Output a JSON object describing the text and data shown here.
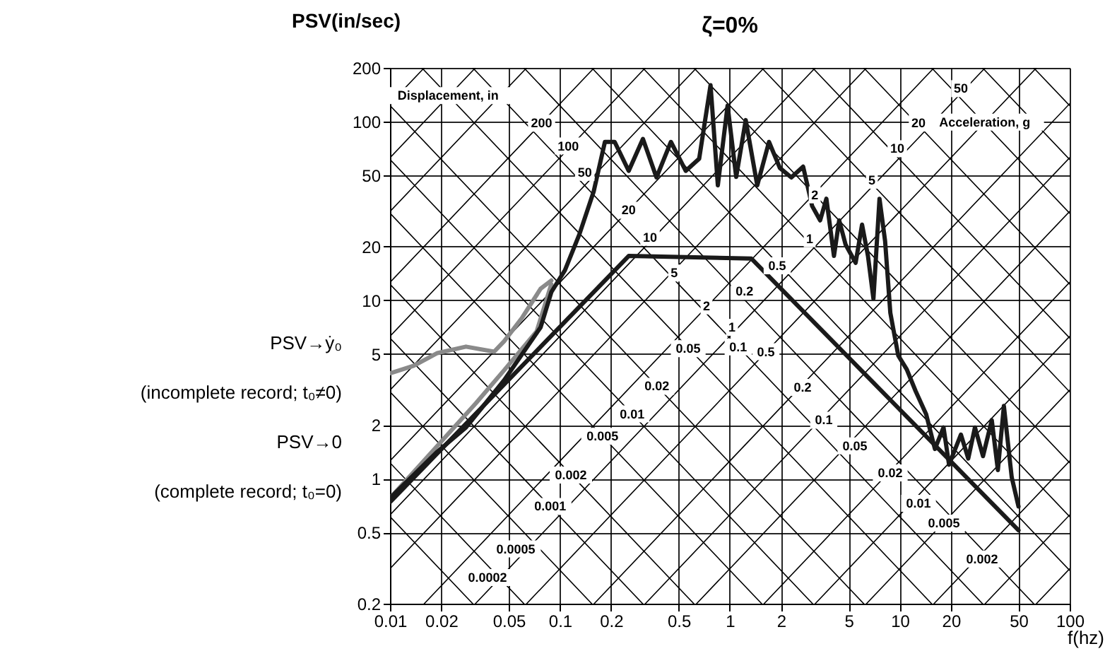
{
  "chart_data": {
    "type": "line",
    "title": "ζ=0%",
    "xlabel": "f(hz)",
    "ylabel": "PSV(in/sec)",
    "xlim": [
      0.01,
      100
    ],
    "ylim": [
      0.2,
      200
    ],
    "xticks": [
      0.01,
      0.02,
      0.05,
      0.1,
      0.2,
      0.5,
      1,
      2,
      5,
      10,
      20,
      50,
      100
    ],
    "yticks": [
      0.2,
      0.5,
      1,
      2,
      5,
      10,
      20,
      50,
      100,
      200
    ],
    "log": "xy",
    "grid": true,
    "legend": false,
    "marker": "none",
    "line_style": "solid",
    "series": [
      {
        "color": "#8a8a8a",
        "x": [
          0.01,
          0.0138,
          0.019,
          0.028,
          0.041,
          0.047,
          0.06,
          0.077,
          0.089
        ],
        "values": [
          3.9,
          4.3,
          5.06,
          5.5,
          5.15,
          5.9,
          8,
          11.6,
          12.9
        ]
      },
      {
        "color": "#8a8a8a",
        "x": [
          0.01,
          0.019,
          0.032,
          0.047,
          0.073,
          0.089
        ],
        "values": [
          0.78,
          1.53,
          2.65,
          4.06,
          6.7,
          12.3
        ]
      },
      {
        "color": "#1a1a1a",
        "x": [
          0.01,
          0.019,
          0.028,
          0.047,
          0.077,
          0.089,
          0.107,
          0.13,
          0.158,
          0.184,
          0.21,
          0.254,
          0.308,
          0.37,
          0.45,
          0.55,
          0.66,
          0.77,
          0.85,
          0.97,
          1.09,
          1.24,
          1.45,
          1.7,
          1.97,
          2.3,
          2.7,
          3.05,
          3.4,
          3.7,
          4.1,
          4.4,
          4.8,
          5.5,
          6.0,
          6.5,
          7.0,
          7.6,
          8.2,
          8.8,
          9.8,
          11,
          12.4,
          14.3,
          16.1,
          18.1,
          19.5,
          22.9,
          25.3,
          27.7,
          30.9,
          34.8,
          37.8,
          41,
          45.6,
          50
        ],
        "values": [
          0.78,
          1.42,
          1.94,
          3.57,
          7.06,
          11.1,
          14.7,
          23.3,
          40.6,
          77,
          77,
          53,
          80,
          48.7,
          77,
          53,
          62,
          160,
          44,
          123,
          49,
          102,
          44,
          77,
          55,
          48.7,
          56,
          33.7,
          28,
          37,
          17.7,
          28,
          20.5,
          16.2,
          26.5,
          17.7,
          10.2,
          37,
          21.4,
          8.5,
          4.9,
          4.1,
          3.1,
          2.3,
          1.47,
          1.94,
          1.2,
          1.77,
          1.3,
          1.94,
          1.34,
          2.13,
          1.12,
          2.56,
          1.02,
          0.7
        ]
      },
      {
        "color": "#1a1a1a",
        "x": [
          0.01,
          0.254,
          1.34,
          50
        ],
        "values": [
          0.74,
          17.7,
          17.1,
          0.515
        ]
      },
      {
        "color": "#000000",
        "x": [
          63.7,
          100
        ],
        "values": [
          0.2,
          0.314
        ]
      },
      {
        "color": "#000000",
        "x": [
          31.8,
          100
        ],
        "values": [
          0.2,
          0.628
        ]
      },
      {
        "color": "#000000",
        "x": [
          15.9,
          100
        ],
        "values": [
          0.2,
          1.26
        ]
      },
      {
        "color": "#000000",
        "x": [
          6.37,
          100
        ],
        "values": [
          0.2,
          3.14
        ]
      },
      {
        "color": "#000000",
        "x": [
          3.18,
          100
        ],
        "values": [
          0.2,
          6.28
        ]
      },
      {
        "color": "#000000",
        "x": [
          1.59,
          100
        ],
        "values": [
          0.2,
          12.6
        ]
      },
      {
        "color": "#000000",
        "x": [
          0.637,
          100
        ],
        "values": [
          0.2,
          31.4
        ]
      },
      {
        "color": "#000000",
        "x": [
          0.318,
          100
        ],
        "values": [
          0.2,
          62.8
        ]
      },
      {
        "color": "#000000",
        "x": [
          0.159,
          100
        ],
        "values": [
          0.2,
          126
        ]
      },
      {
        "color": "#000000",
        "x": [
          0.0637,
          63.7
        ],
        "values": [
          0.2,
          200
        ]
      },
      {
        "color": "#000000",
        "x": [
          0.0318,
          31.8
        ],
        "values": [
          0.2,
          200
        ]
      },
      {
        "color": "#000000",
        "x": [
          0.0159,
          15.9
        ],
        "values": [
          0.2,
          200
        ]
      },
      {
        "color": "#000000",
        "x": [
          0.01,
          6.37
        ],
        "values": [
          0.314,
          200
        ]
      },
      {
        "color": "#000000",
        "x": [
          0.01,
          3.18
        ],
        "values": [
          0.628,
          200
        ]
      },
      {
        "color": "#000000",
        "x": [
          0.01,
          1.59
        ],
        "values": [
          1.26,
          200
        ]
      },
      {
        "color": "#000000",
        "x": [
          0.01,
          0.637
        ],
        "values": [
          3.14,
          200
        ]
      },
      {
        "color": "#000000",
        "x": [
          0.01,
          0.318
        ],
        "values": [
          6.28,
          200
        ]
      },
      {
        "color": "#000000",
        "x": [
          0.01,
          0.159
        ],
        "values": [
          12.6,
          200
        ]
      },
      {
        "color": "#000000",
        "x": [
          0.01,
          0.0637
        ],
        "values": [
          31.4,
          200
        ]
      },
      {
        "color": "#000000",
        "x": [
          0.01,
          0.0318
        ],
        "values": [
          62.8,
          200
        ]
      },
      {
        "color": "#000000",
        "x": [
          0.01,
          0.0159
        ],
        "values": [
          126,
          200
        ]
      },
      {
        "color": "#000000",
        "x": [
          0.01,
          0.0307
        ],
        "values": [
          0.614,
          0.2
        ]
      },
      {
        "color": "#000000",
        "x": [
          0.01,
          0.0614
        ],
        "values": [
          1.23,
          0.2
        ]
      },
      {
        "color": "#000000",
        "x": [
          0.01,
          0.154
        ],
        "values": [
          3.07,
          0.2
        ]
      },
      {
        "color": "#000000",
        "x": [
          0.01,
          0.307
        ],
        "values": [
          6.14,
          0.2
        ]
      },
      {
        "color": "#000000",
        "x": [
          0.01,
          0.614
        ],
        "values": [
          12.3,
          0.2
        ]
      },
      {
        "color": "#000000",
        "x": [
          0.01,
          1.54
        ],
        "values": [
          30.7,
          0.2
        ]
      },
      {
        "color": "#000000",
        "x": [
          0.01,
          3.07
        ],
        "values": [
          61.4,
          0.2
        ]
      },
      {
        "color": "#000000",
        "x": [
          0.01,
          6.14
        ],
        "values": [
          123,
          0.2
        ]
      },
      {
        "color": "#000000",
        "x": [
          0.0154,
          15.4
        ],
        "values": [
          200,
          0.2
        ]
      },
      {
        "color": "#000000",
        "x": [
          0.0307,
          30.7
        ],
        "values": [
          200,
          0.2
        ]
      },
      {
        "color": "#000000",
        "x": [
          0.0614,
          61.4
        ],
        "values": [
          200,
          0.2
        ]
      },
      {
        "color": "#000000",
        "x": [
          0.154,
          100
        ],
        "values": [
          200,
          0.307
        ]
      },
      {
        "color": "#000000",
        "x": [
          0.307,
          100
        ],
        "values": [
          200,
          0.614
        ]
      },
      {
        "color": "#000000",
        "x": [
          0.614,
          100
        ],
        "values": [
          200,
          1.23
        ]
      },
      {
        "color": "#000000",
        "x": [
          1.54,
          100
        ],
        "values": [
          200,
          3.07
        ]
      },
      {
        "color": "#000000",
        "x": [
          3.07,
          100
        ],
        "values": [
          200,
          6.14
        ]
      },
      {
        "color": "#000000",
        "x": [
          6.14,
          100
        ],
        "values": [
          200,
          12.3
        ]
      },
      {
        "color": "#000000",
        "x": [
          15.4,
          100
        ],
        "values": [
          200,
          30.7
        ]
      },
      {
        "color": "#000000",
        "x": [
          30.7,
          100
        ],
        "values": [
          200,
          61.4
        ]
      },
      {
        "color": "#000000",
        "x": [
          61.4,
          100
        ],
        "values": [
          200,
          123
        ]
      }
    ],
    "annotations": [
      "PSV→ẏ₀",
      "(incomplete record; t₀≠0)",
      "PSV→0",
      "(complete record; t₀=0)",
      {
        "text": "Displacement, in",
        "x": 0.022,
        "y": 140
      },
      {
        "text": "200",
        "x": 0.078,
        "y": 98
      },
      {
        "text": "100",
        "x": 0.112,
        "y": 73
      },
      {
        "text": "50",
        "x": 0.14,
        "y": 52
      },
      {
        "text": "20",
        "x": 0.254,
        "y": 31.9
      },
      {
        "text": "10",
        "x": 0.339,
        "y": 22.5
      },
      {
        "text": "5",
        "x": 0.47,
        "y": 14.2
      },
      {
        "text": "2",
        "x": 0.729,
        "y": 9.3
      },
      {
        "text": "1",
        "x": 1.03,
        "y": 7.05
      },
      {
        "text": "0.5",
        "x": 1.63,
        "y": 5.15
      },
      {
        "text": "0.2",
        "x": 2.68,
        "y": 3.25
      },
      {
        "text": "0.1",
        "x": 3.57,
        "y": 2.13
      },
      {
        "text": "0.05",
        "x": 5.45,
        "y": 1.53
      },
      {
        "text": "0.02",
        "x": 8.79,
        "y": 1.08
      },
      {
        "text": "0.01",
        "x": 12.9,
        "y": 0.73
      },
      {
        "text": "0.005",
        "x": 18.2,
        "y": 0.565
      },
      {
        "text": "0.002",
        "x": 30.5,
        "y": 0.356
      },
      {
        "text": "Acceleration, g",
        "x": 31.6,
        "y": 99.3
      },
      {
        "text": "0.0002",
        "x": 0.0375,
        "y": 0.28
      },
      {
        "text": "0.0005",
        "x": 0.055,
        "y": 0.405
      },
      {
        "text": "0.001",
        "x": 0.0877,
        "y": 0.701
      },
      {
        "text": "0.002",
        "x": 0.116,
        "y": 1.05
      },
      {
        "text": "0.005",
        "x": 0.178,
        "y": 1.73
      },
      {
        "text": "0.01",
        "x": 0.266,
        "y": 2.31
      },
      {
        "text": "0.02",
        "x": 0.372,
        "y": 3.3
      },
      {
        "text": "0.05",
        "x": 0.569,
        "y": 5.35
      },
      {
        "text": "0.1",
        "x": 1.12,
        "y": 5.48
      },
      {
        "text": "0.2",
        "x": 1.22,
        "y": 11.2
      },
      {
        "text": "0.5",
        "x": 1.9,
        "y": 15.6
      },
      {
        "text": "1",
        "x": 2.95,
        "y": 22.1
      },
      {
        "text": "2",
        "x": 3.16,
        "y": 38.9
      },
      {
        "text": "5",
        "x": 6.85,
        "y": 47
      },
      {
        "text": "10",
        "x": 9.67,
        "y": 70.5
      },
      {
        "text": "20",
        "x": 12.9,
        "y": 98.2
      },
      {
        "text": "50",
        "x": 22.9,
        "y": 153
      }
    ]
  }
}
